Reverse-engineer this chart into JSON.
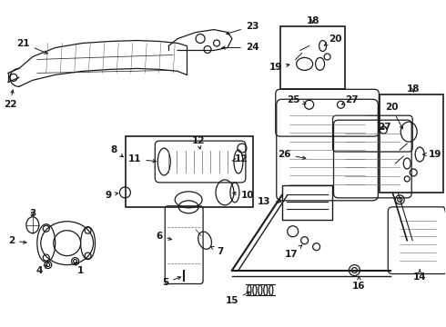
{
  "background_color": "#ffffff",
  "fig_width": 4.9,
  "fig_height": 3.6,
  "dpi": 100,
  "dark": "#1a1a1a",
  "gray": "#666666",
  "lw_main": 0.9,
  "lw_thin": 0.5,
  "fs_label": 7.5
}
